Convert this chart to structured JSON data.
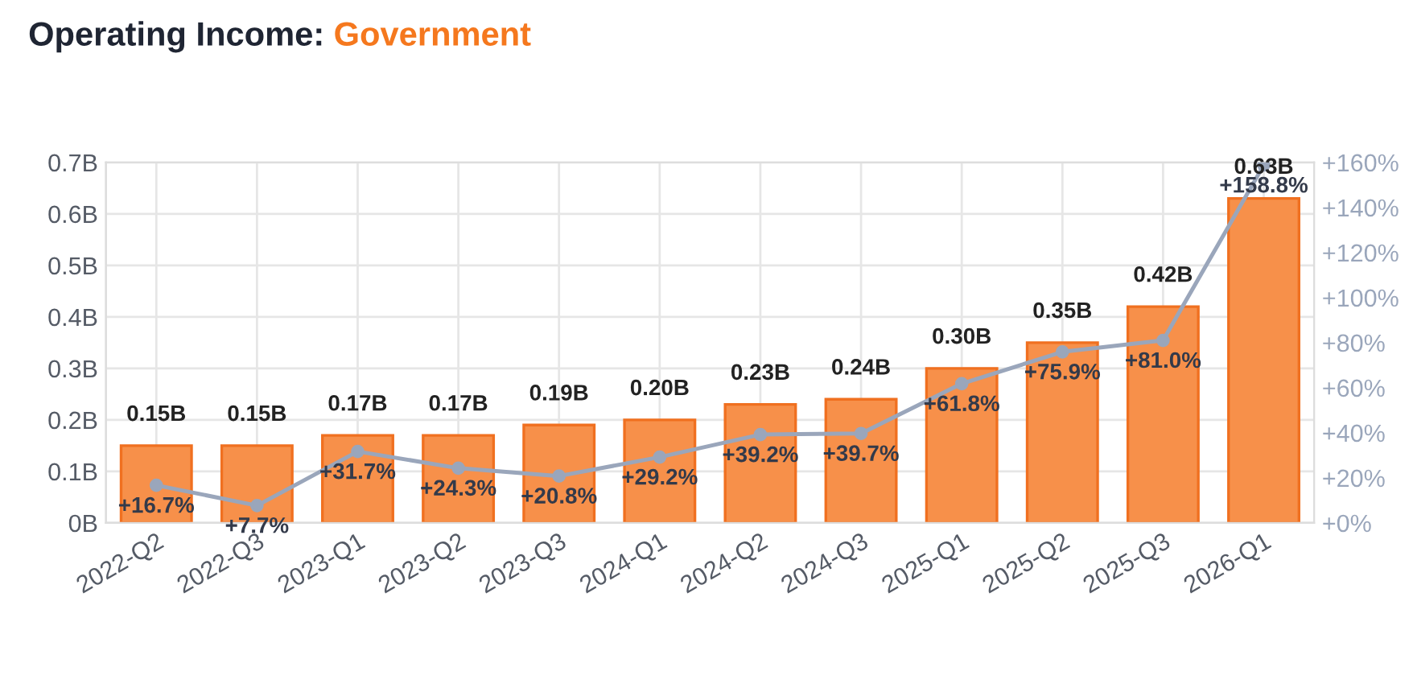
{
  "chart_data": {
    "type": "bar",
    "title": "Operating Income:",
    "subtitle": "Government",
    "categories": [
      "2022-Q2",
      "2022-Q3",
      "2023-Q1",
      "2023-Q2",
      "2023-Q3",
      "2024-Q1",
      "2024-Q2",
      "2024-Q3",
      "2025-Q1",
      "2025-Q2",
      "2025-Q3",
      "2026-Q1"
    ],
    "series": [
      {
        "color": "#f7904a",
        "values": [
          0.15,
          0.15,
          0.17,
          0.17,
          0.19,
          0.2,
          0.23,
          0.24,
          0.3,
          0.35,
          0.42,
          0.63
        ],
        "value_labels": [
          "0.15B",
          "0.15B",
          "0.17B",
          "0.17B",
          "0.19B",
          "0.20B",
          "0.23B",
          "0.24B",
          "0.30B",
          "0.35B",
          "0.42B",
          "0.63B"
        ]
      },
      {
        "type": "line",
        "axis": "y2",
        "color": "#9aa6bb",
        "marker": "circle",
        "values": [
          16.7,
          7.7,
          31.7,
          24.3,
          20.8,
          29.2,
          39.2,
          39.7,
          61.8,
          75.9,
          81.0,
          158.8
        ],
        "value_labels": [
          "+16.7%",
          "+7.7%",
          "+31.7%",
          "+24.3%",
          "+20.8%",
          "+29.2%",
          "+39.2%",
          "+39.7%",
          "+61.8%",
          "+75.9%",
          "+81.0%",
          "+158.8%"
        ]
      }
    ],
    "ylim": [
      0,
      0.7
    ],
    "yticks": [
      {
        "value": 0,
        "label": "0B"
      },
      {
        "value": 0.1,
        "label": "0.1B"
      },
      {
        "value": 0.2,
        "label": "0.2B"
      },
      {
        "value": 0.3,
        "label": "0.3B"
      },
      {
        "value": 0.4,
        "label": "0.4B"
      },
      {
        "value": 0.5,
        "label": "0.5B"
      },
      {
        "value": 0.6,
        "label": "0.6B"
      },
      {
        "value": 0.7,
        "label": "0.7B"
      }
    ],
    "y2lim": [
      0,
      160
    ],
    "y2ticks": [
      {
        "value": 0,
        "label": "+0%"
      },
      {
        "value": 20,
        "label": "+20%"
      },
      {
        "value": 40,
        "label": "+40%"
      },
      {
        "value": 60,
        "label": "+60%"
      },
      {
        "value": 80,
        "label": "+80%"
      },
      {
        "value": 100,
        "label": "+100%"
      },
      {
        "value": 120,
        "label": "+120%"
      },
      {
        "value": 140,
        "label": "+140%"
      },
      {
        "value": 160,
        "label": "+160%"
      }
    ],
    "grid": true
  }
}
